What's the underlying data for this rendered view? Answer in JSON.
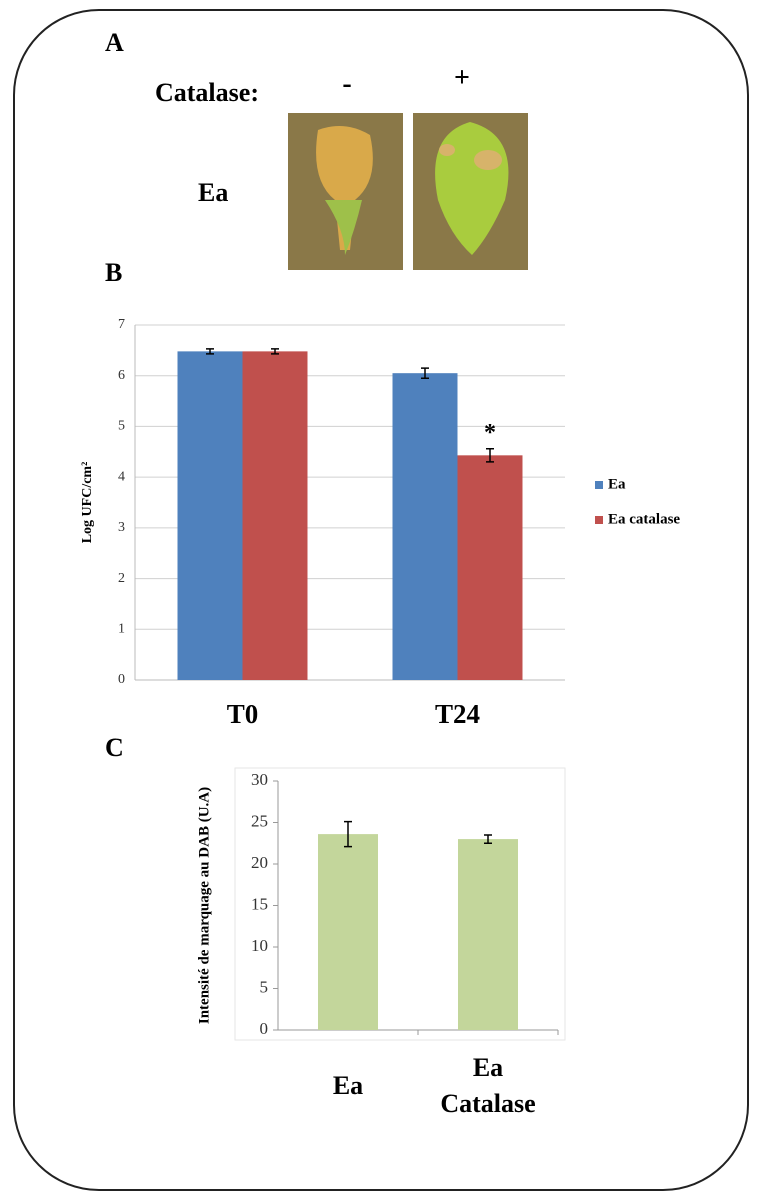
{
  "panel_a": {
    "label": "A",
    "condition_label": "Catalase:",
    "columns": [
      "-",
      "+"
    ],
    "row_label": "Ea"
  },
  "chart_data": [
    {
      "type": "bar",
      "panel": "B",
      "y_label": "Log UFC/cm²",
      "categories": [
        "T0",
        "T24"
      ],
      "series": [
        {
          "name": "Ea",
          "color": "#4f81bd",
          "values": [
            6.48,
            6.05
          ],
          "errors": [
            0.05,
            0.1
          ]
        },
        {
          "name": "Ea catalase",
          "color": "#c0504d",
          "values": [
            6.48,
            4.43
          ],
          "errors": [
            0.05,
            0.13
          ],
          "annotations": [
            null,
            "*"
          ]
        }
      ],
      "ylim": [
        0,
        7
      ],
      "yticks": [
        0,
        1,
        2,
        3,
        4,
        5,
        6,
        7
      ],
      "grid": true,
      "legend": "right"
    },
    {
      "type": "bar",
      "panel": "C",
      "y_label": "Intensité de marquage au DAB (U.A)",
      "categories": [
        "Ea",
        "Ea Catalase"
      ],
      "series": [
        {
          "color": "#c3d69b",
          "values": [
            23.6,
            23.0
          ],
          "errors": [
            1.5,
            0.5
          ]
        }
      ],
      "ylim": [
        0,
        30
      ],
      "yticks": [
        0,
        5,
        10,
        15,
        20,
        25,
        30
      ],
      "grid": false
    }
  ]
}
